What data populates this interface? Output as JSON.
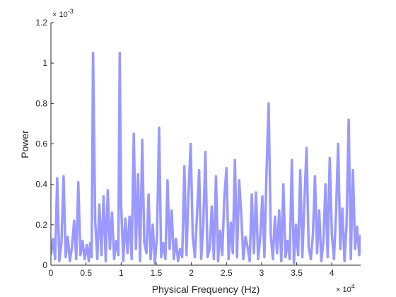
{
  "chart_data": {
    "type": "line",
    "title": "",
    "xlabel": "Physical Frequency (Hz)",
    "ylabel": "Power",
    "xlim": [
      0,
      44100
    ],
    "ylim": [
      0,
      0.0012
    ],
    "grid": false,
    "legend": "none",
    "line_color": "#9999ff",
    "x_tick_labels": [
      "0",
      "0.5",
      "1",
      "1.5",
      "2",
      "2.5",
      "3",
      "3.5",
      "4"
    ],
    "x_tick_values": [
      0,
      5000,
      10000,
      15000,
      20000,
      25000,
      30000,
      35000,
      40000
    ],
    "x_exponent_base": "× 10",
    "x_exponent_power": "4",
    "y_tick_labels": [
      "0",
      "0.2",
      "0.4",
      "0.6",
      "0.8",
      "1",
      "1.2"
    ],
    "y_tick_values": [
      0,
      0.0002,
      0.0004,
      0.0006,
      0.0008,
      0.001,
      0.0012
    ],
    "y_exponent_base": "× 10",
    "y_exponent_power": "-3",
    "series": [
      {
        "x": [
          0,
          300,
          600,
          900,
          1200,
          1500,
          1800,
          2100,
          2400,
          2700,
          3000,
          3300,
          3600,
          3900,
          4200,
          4500,
          4800,
          5100,
          5400,
          5600,
          5800,
          6000,
          6300,
          6600,
          6900,
          7200,
          7500,
          7800,
          8100,
          8400,
          8700,
          9000,
          9300,
          9600,
          9800,
          10000,
          10300,
          10600,
          10900,
          11200,
          11500,
          11800,
          12100,
          12400,
          12700,
          13000,
          13300,
          13600,
          13900,
          14200,
          14500,
          14800,
          15100,
          15400,
          15700,
          16000,
          16300,
          16600,
          16900,
          17200,
          17500,
          17800,
          18100,
          18400,
          18700,
          19000,
          19300,
          19600,
          19900,
          20200,
          20500,
          20800,
          21100,
          21400,
          21700,
          22000,
          22300,
          22600,
          22900,
          23200,
          23500,
          23800,
          24100,
          24400,
          24700,
          25000,
          25300,
          25600,
          25900,
          26200,
          26500,
          26800,
          27100,
          27400,
          27700,
          28000,
          28300,
          28600,
          28900,
          29200,
          29500,
          29800,
          30100,
          30400,
          30700,
          31000,
          31300,
          31600,
          31900,
          32200,
          32500,
          32800,
          33100,
          33400,
          33700,
          34000,
          34300,
          34600,
          34900,
          35200,
          35500,
          35800,
          36100,
          36400,
          36700,
          37000,
          37300,
          37600,
          37900,
          38200,
          38500,
          38800,
          39100,
          39400,
          39700,
          40000,
          40300,
          40600,
          40900,
          41200,
          41500,
          41800,
          42100,
          42400,
          42700,
          43000,
          43300,
          43600,
          43900,
          44100
        ],
        "y": [
          5e-05,
          0.00013,
          3e-05,
          0.00043,
          2e-05,
          0.00011,
          0.00044,
          4e-05,
          0.00014,
          2e-05,
          9e-05,
          0.00022,
          3e-05,
          0.00041,
          5e-05,
          0.00012,
          3e-05,
          0.0001,
          2e-05,
          0.00011,
          4e-05,
          0.00105,
          0.00022,
          3e-05,
          0.0003,
          5e-05,
          0.00034,
          2e-05,
          0.00037,
          8e-05,
          0.00026,
          3e-05,
          0.00012,
          5e-05,
          0.00105,
          0.0003,
          2e-05,
          0.00023,
          6e-05,
          0.00024,
          3e-05,
          0.00065,
          8e-05,
          0.00045,
          2e-05,
          0.00062,
          0.00011,
          6e-05,
          0.00035,
          3e-05,
          0.0002,
          1e-05,
          0.00014,
          0.00068,
          4e-05,
          0.00011,
          3e-05,
          0.00042,
          8e-05,
          0.00027,
          3e-05,
          0.00013,
          2e-05,
          8e-05,
          4e-05,
          0.00049,
          5e-05,
          0.00037,
          0.0006,
          0.00014,
          4e-05,
          0.00025,
          0.00047,
          3e-05,
          0.0002,
          0.00056,
          4e-05,
          8e-05,
          0.00029,
          3e-05,
          0.00044,
          2e-05,
          0.00017,
          5e-05,
          0.00034,
          0.00048,
          3e-05,
          0.00021,
          6e-05,
          0.00052,
          4e-05,
          0.00042,
          0.00025,
          3e-05,
          0.00014,
          9e-05,
          2e-05,
          0.00035,
          6e-05,
          0.00036,
          3e-05,
          0.00014,
          0.00034,
          4e-05,
          0.00046,
          0.0008,
          0.00015,
          3e-05,
          0.00024,
          6e-05,
          0.00027,
          2e-05,
          0.0004,
          4e-05,
          0.00012,
          3e-05,
          0.00052,
          1e-05,
          0.0002,
          5e-05,
          0.00047,
          4e-05,
          0.00032,
          0.00058,
          9e-05,
          3e-05,
          0.00015,
          0.00044,
          6e-05,
          0.00027,
          2e-05,
          0.00012,
          0.0004,
          4e-05,
          0.00053,
          0.00015,
          3e-05,
          0.00026,
          0.0006,
          8e-05,
          0.00028,
          2e-05,
          0.0002,
          0.00072,
          3e-05,
          0.00047,
          8e-05,
          0.00019,
          5e-05,
          0.00015
        ]
      }
    ]
  }
}
